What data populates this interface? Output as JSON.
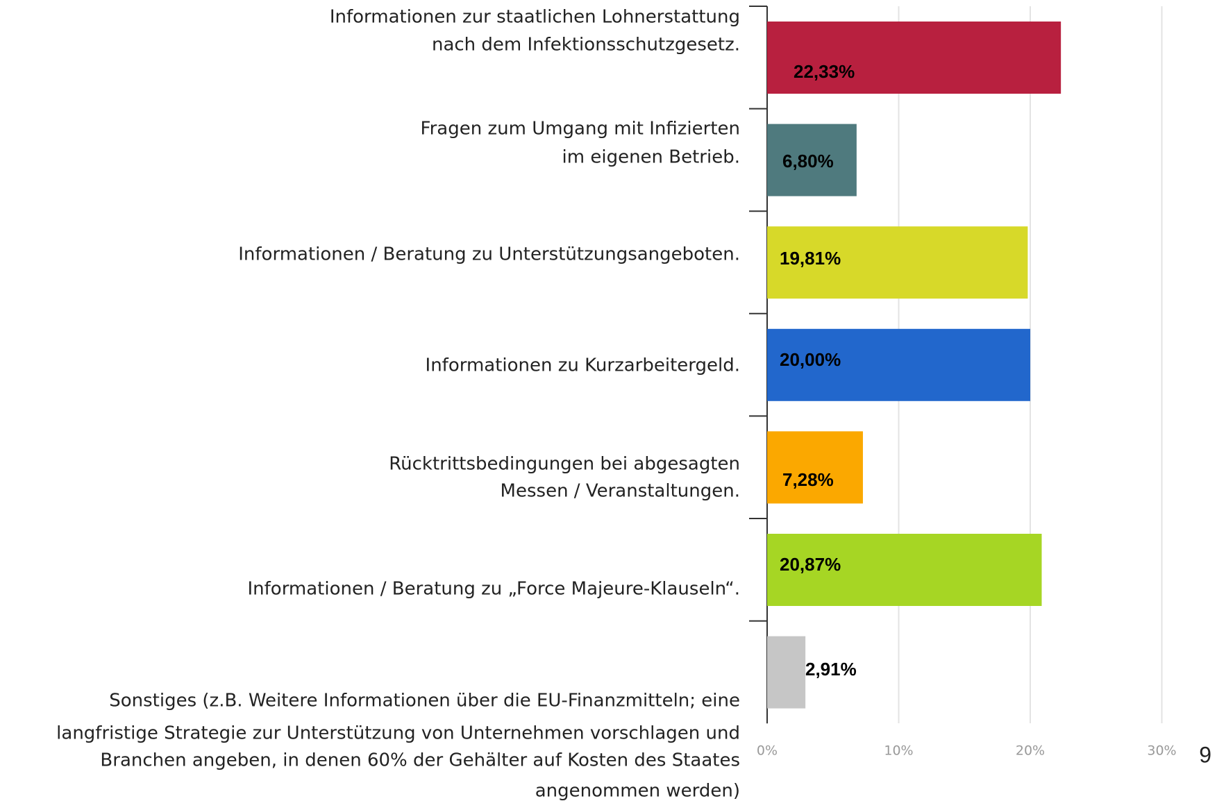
{
  "chart_data": {
    "type": "hbar",
    "categories": [
      [
        "Informationen zur staatlichen Lohnerstattung",
        "nach dem Infektionsschutzgesetz."
      ],
      [
        "Fragen zum Umgang mit Infizierten",
        "im eigenen Betrieb."
      ],
      [
        "Informationen / Beratung zu Unterstützungsangeboten."
      ],
      [
        "Informationen zu Kurzarbeitergeld."
      ],
      [
        "Rücktrittsbedingungen bei abgesagten",
        "Messen / Veranstaltungen."
      ],
      [
        "Informationen / Beratung zu „Force Majeure-Klauseln“."
      ],
      [
        "Sonstiges (z.B. Weitere Informationen über die EU-Finanzmitteln; eine",
        "langfristige Strategie zur Unterstützung von Unternehmen vorschlagen und",
        "Branchen angeben, in denen 60% der Gehälter auf Kosten des Staates",
        "angenommen werden)"
      ]
    ],
    "values": [
      22.33,
      6.8,
      19.81,
      20.0,
      7.28,
      20.87,
      2.91
    ],
    "value_labels": [
      "22,33%",
      "6,80%",
      "19,81%",
      "20,00%",
      "7,28%",
      "20,87%",
      "2,91%"
    ],
    "colors": [
      "#b8203f",
      "#4f7a7e",
      "#d7d929",
      "#2267cc",
      "#fba800",
      "#a6d624",
      "#c6c6c6"
    ],
    "xlim": [
      0,
      31.6
    ],
    "xticks": [
      {
        "value": 0,
        "label": "0%"
      },
      {
        "value": 10,
        "label": "10%"
      },
      {
        "value": 20,
        "label": "20%"
      },
      {
        "value": 30,
        "label": "30%"
      }
    ],
    "grid": true
  },
  "page_number": "9"
}
